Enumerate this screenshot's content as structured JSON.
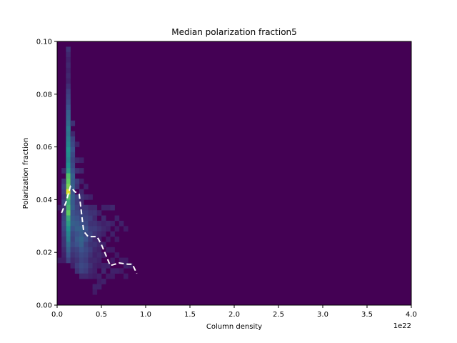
{
  "chart_data": {
    "type": "heatmap",
    "title": "Median polarization fraction5",
    "xlabel": "Column density",
    "ylabel": "Polarization fraction",
    "x_offset_label": "1e22",
    "xlim": [
      0.0,
      4.0
    ],
    "ylim": [
      0.0,
      0.1
    ],
    "x_ticks": [
      0.0,
      0.5,
      1.0,
      1.5,
      2.0,
      2.5,
      3.0,
      3.5,
      4.0
    ],
    "x_tick_labels": [
      "0.0",
      "0.5",
      "1.0",
      "1.5",
      "2.0",
      "2.5",
      "3.0",
      "3.5",
      "4.0"
    ],
    "y_ticks": [
      0.0,
      0.02,
      0.04,
      0.06,
      0.08,
      0.1
    ],
    "y_tick_labels": [
      "0.00",
      "0.02",
      "0.04",
      "0.06",
      "0.08",
      "0.10"
    ],
    "grid": false,
    "colormap": "viridis",
    "background_color": "#440154",
    "histogram": {
      "x_bin_width": 0.05,
      "y_bin_width": 0.002,
      "cells": [
        [
          0.1,
          0.096,
          0.15
        ],
        [
          0.1,
          0.094,
          0.12
        ],
        [
          0.1,
          0.092,
          0.1
        ],
        [
          0.1,
          0.09,
          0.12
        ],
        [
          0.1,
          0.088,
          0.1
        ],
        [
          0.1,
          0.086,
          0.12
        ],
        [
          0.1,
          0.084,
          0.1
        ],
        [
          0.1,
          0.082,
          0.14
        ],
        [
          0.1,
          0.08,
          0.18
        ],
        [
          0.1,
          0.078,
          0.2
        ],
        [
          0.1,
          0.076,
          0.22
        ],
        [
          0.1,
          0.074,
          0.25
        ],
        [
          0.1,
          0.072,
          0.3
        ],
        [
          0.1,
          0.07,
          0.32
        ],
        [
          0.1,
          0.068,
          0.35
        ],
        [
          0.1,
          0.066,
          0.4
        ],
        [
          0.1,
          0.064,
          0.38
        ],
        [
          0.1,
          0.062,
          0.42
        ],
        [
          0.1,
          0.06,
          0.45
        ],
        [
          0.1,
          0.058,
          0.5
        ],
        [
          0.1,
          0.056,
          0.48
        ],
        [
          0.1,
          0.054,
          0.45
        ],
        [
          0.1,
          0.052,
          0.5
        ],
        [
          0.1,
          0.05,
          0.55
        ],
        [
          0.1,
          0.048,
          0.7
        ],
        [
          0.1,
          0.046,
          0.75
        ],
        [
          0.1,
          0.044,
          0.8
        ],
        [
          0.1,
          0.042,
          0.95
        ],
        [
          0.1,
          0.04,
          0.7
        ],
        [
          0.1,
          0.038,
          0.6
        ],
        [
          0.1,
          0.036,
          0.65
        ],
        [
          0.1,
          0.034,
          0.75
        ],
        [
          0.1,
          0.032,
          0.6
        ],
        [
          0.1,
          0.03,
          0.55
        ],
        [
          0.1,
          0.028,
          0.5
        ],
        [
          0.1,
          0.026,
          0.45
        ],
        [
          0.1,
          0.024,
          0.42
        ],
        [
          0.1,
          0.022,
          0.35
        ],
        [
          0.1,
          0.02,
          0.3
        ],
        [
          0.1,
          0.018,
          0.25
        ],
        [
          0.1,
          0.016,
          0.2
        ],
        [
          0.05,
          0.05,
          0.12
        ],
        [
          0.05,
          0.046,
          0.15
        ],
        [
          0.05,
          0.044,
          0.2
        ],
        [
          0.05,
          0.042,
          0.18
        ],
        [
          0.05,
          0.04,
          0.15
        ],
        [
          0.05,
          0.038,
          0.2
        ],
        [
          0.05,
          0.036,
          0.15
        ],
        [
          0.05,
          0.034,
          0.18
        ],
        [
          0.05,
          0.032,
          0.2
        ],
        [
          0.05,
          0.03,
          0.22
        ],
        [
          0.05,
          0.028,
          0.2
        ],
        [
          0.05,
          0.026,
          0.18
        ],
        [
          0.05,
          0.024,
          0.15
        ],
        [
          0.05,
          0.022,
          0.15
        ],
        [
          0.05,
          0.02,
          0.12
        ],
        [
          0.05,
          0.018,
          0.1
        ],
        [
          0.05,
          0.016,
          0.08
        ],
        [
          0.0,
          0.016,
          0.08
        ],
        [
          0.0,
          0.036,
          0.08
        ],
        [
          0.15,
          0.068,
          0.15
        ],
        [
          0.15,
          0.064,
          0.12
        ],
        [
          0.15,
          0.062,
          0.2
        ],
        [
          0.15,
          0.06,
          0.22
        ],
        [
          0.15,
          0.058,
          0.25
        ],
        [
          0.15,
          0.056,
          0.22
        ],
        [
          0.15,
          0.054,
          0.2
        ],
        [
          0.15,
          0.052,
          0.22
        ],
        [
          0.15,
          0.05,
          0.25
        ],
        [
          0.15,
          0.048,
          0.3
        ],
        [
          0.15,
          0.046,
          0.28
        ],
        [
          0.15,
          0.044,
          0.3
        ],
        [
          0.15,
          0.042,
          0.25
        ],
        [
          0.15,
          0.04,
          0.3
        ],
        [
          0.15,
          0.038,
          0.28
        ],
        [
          0.15,
          0.036,
          0.3
        ],
        [
          0.15,
          0.034,
          0.25
        ],
        [
          0.15,
          0.032,
          0.28
        ],
        [
          0.15,
          0.03,
          0.3
        ],
        [
          0.15,
          0.028,
          0.25
        ],
        [
          0.15,
          0.026,
          0.22
        ],
        [
          0.15,
          0.024,
          0.2
        ],
        [
          0.15,
          0.022,
          0.22
        ],
        [
          0.15,
          0.02,
          0.18
        ],
        [
          0.15,
          0.018,
          0.15
        ],
        [
          0.15,
          0.016,
          0.12
        ],
        [
          0.15,
          0.014,
          0.1
        ],
        [
          0.2,
          0.06,
          0.1
        ],
        [
          0.2,
          0.054,
          0.12
        ],
        [
          0.2,
          0.05,
          0.15
        ],
        [
          0.2,
          0.046,
          0.18
        ],
        [
          0.2,
          0.044,
          0.15
        ],
        [
          0.2,
          0.04,
          0.2
        ],
        [
          0.2,
          0.038,
          0.18
        ],
        [
          0.2,
          0.036,
          0.2
        ],
        [
          0.2,
          0.034,
          0.22
        ],
        [
          0.2,
          0.032,
          0.25
        ],
        [
          0.2,
          0.03,
          0.28
        ],
        [
          0.2,
          0.028,
          0.3
        ],
        [
          0.2,
          0.026,
          0.25
        ],
        [
          0.2,
          0.024,
          0.28
        ],
        [
          0.2,
          0.022,
          0.25
        ],
        [
          0.2,
          0.02,
          0.2
        ],
        [
          0.2,
          0.018,
          0.18
        ],
        [
          0.2,
          0.016,
          0.15
        ],
        [
          0.2,
          0.014,
          0.18
        ],
        [
          0.2,
          0.012,
          0.15
        ],
        [
          0.25,
          0.054,
          0.1
        ],
        [
          0.25,
          0.05,
          0.12
        ],
        [
          0.25,
          0.046,
          0.1
        ],
        [
          0.25,
          0.042,
          0.12
        ],
        [
          0.25,
          0.04,
          0.15
        ],
        [
          0.25,
          0.038,
          0.12
        ],
        [
          0.25,
          0.036,
          0.15
        ],
        [
          0.25,
          0.034,
          0.2
        ],
        [
          0.25,
          0.032,
          0.22
        ],
        [
          0.25,
          0.03,
          0.25
        ],
        [
          0.25,
          0.028,
          0.3
        ],
        [
          0.25,
          0.026,
          0.28
        ],
        [
          0.25,
          0.024,
          0.32
        ],
        [
          0.25,
          0.022,
          0.3
        ],
        [
          0.25,
          0.02,
          0.25
        ],
        [
          0.25,
          0.018,
          0.22
        ],
        [
          0.25,
          0.016,
          0.2
        ],
        [
          0.25,
          0.014,
          0.22
        ],
        [
          0.25,
          0.012,
          0.2
        ],
        [
          0.25,
          0.01,
          0.12
        ],
        [
          0.3,
          0.044,
          0.1
        ],
        [
          0.3,
          0.04,
          0.12
        ],
        [
          0.3,
          0.036,
          0.15
        ],
        [
          0.3,
          0.034,
          0.18
        ],
        [
          0.3,
          0.032,
          0.2
        ],
        [
          0.3,
          0.03,
          0.22
        ],
        [
          0.3,
          0.028,
          0.25
        ],
        [
          0.3,
          0.026,
          0.22
        ],
        [
          0.3,
          0.024,
          0.25
        ],
        [
          0.3,
          0.022,
          0.2
        ],
        [
          0.3,
          0.02,
          0.22
        ],
        [
          0.3,
          0.018,
          0.2
        ],
        [
          0.3,
          0.016,
          0.18
        ],
        [
          0.3,
          0.014,
          0.2
        ],
        [
          0.3,
          0.012,
          0.18
        ],
        [
          0.3,
          0.01,
          0.12
        ],
        [
          0.35,
          0.04,
          0.1
        ],
        [
          0.35,
          0.036,
          0.12
        ],
        [
          0.35,
          0.034,
          0.15
        ],
        [
          0.35,
          0.032,
          0.18
        ],
        [
          0.35,
          0.03,
          0.15
        ],
        [
          0.35,
          0.028,
          0.18
        ],
        [
          0.35,
          0.026,
          0.2
        ],
        [
          0.35,
          0.024,
          0.18
        ],
        [
          0.35,
          0.022,
          0.15
        ],
        [
          0.35,
          0.02,
          0.18
        ],
        [
          0.35,
          0.018,
          0.15
        ],
        [
          0.35,
          0.016,
          0.12
        ],
        [
          0.35,
          0.014,
          0.15
        ],
        [
          0.35,
          0.012,
          0.12
        ],
        [
          0.35,
          0.01,
          0.1
        ],
        [
          0.4,
          0.036,
          0.12
        ],
        [
          0.4,
          0.034,
          0.15
        ],
        [
          0.4,
          0.032,
          0.12
        ],
        [
          0.4,
          0.03,
          0.15
        ],
        [
          0.4,
          0.028,
          0.18
        ],
        [
          0.4,
          0.026,
          0.15
        ],
        [
          0.4,
          0.024,
          0.12
        ],
        [
          0.4,
          0.022,
          0.15
        ],
        [
          0.4,
          0.02,
          0.12
        ],
        [
          0.4,
          0.018,
          0.1
        ],
        [
          0.4,
          0.016,
          0.12
        ],
        [
          0.4,
          0.014,
          0.1
        ],
        [
          0.4,
          0.012,
          0.1
        ],
        [
          0.4,
          0.01,
          0.08
        ],
        [
          0.4,
          0.006,
          0.1
        ],
        [
          0.4,
          0.004,
          0.08
        ],
        [
          0.45,
          0.034,
          0.1
        ],
        [
          0.45,
          0.03,
          0.12
        ],
        [
          0.45,
          0.028,
          0.15
        ],
        [
          0.45,
          0.026,
          0.12
        ],
        [
          0.45,
          0.024,
          0.1
        ],
        [
          0.45,
          0.022,
          0.12
        ],
        [
          0.45,
          0.02,
          0.1
        ],
        [
          0.45,
          0.018,
          0.12
        ],
        [
          0.45,
          0.016,
          0.1
        ],
        [
          0.45,
          0.014,
          0.08
        ],
        [
          0.45,
          0.01,
          0.1
        ],
        [
          0.45,
          0.008,
          0.08
        ],
        [
          0.45,
          0.006,
          0.1
        ],
        [
          0.5,
          0.036,
          0.1
        ],
        [
          0.5,
          0.032,
          0.12
        ],
        [
          0.5,
          0.03,
          0.1
        ],
        [
          0.5,
          0.028,
          0.12
        ],
        [
          0.5,
          0.026,
          0.1
        ],
        [
          0.5,
          0.022,
          0.1
        ],
        [
          0.5,
          0.018,
          0.08
        ],
        [
          0.5,
          0.014,
          0.1
        ],
        [
          0.5,
          0.012,
          0.12
        ],
        [
          0.5,
          0.008,
          0.1
        ],
        [
          0.55,
          0.036,
          0.1
        ],
        [
          0.55,
          0.03,
          0.12
        ],
        [
          0.55,
          0.028,
          0.1
        ],
        [
          0.55,
          0.024,
          0.08
        ],
        [
          0.55,
          0.02,
          0.08
        ],
        [
          0.55,
          0.014,
          0.1
        ],
        [
          0.55,
          0.01,
          0.08
        ],
        [
          0.6,
          0.036,
          0.12
        ],
        [
          0.6,
          0.03,
          0.1
        ],
        [
          0.6,
          0.026,
          0.1
        ],
        [
          0.6,
          0.02,
          0.08
        ],
        [
          0.6,
          0.016,
          0.08
        ],
        [
          0.6,
          0.012,
          0.1
        ],
        [
          0.6,
          0.01,
          0.08
        ],
        [
          0.65,
          0.032,
          0.1
        ],
        [
          0.65,
          0.028,
          0.08
        ],
        [
          0.65,
          0.024,
          0.08
        ],
        [
          0.65,
          0.018,
          0.08
        ],
        [
          0.65,
          0.012,
          0.1
        ],
        [
          0.7,
          0.03,
          0.1
        ],
        [
          0.7,
          0.016,
          0.08
        ],
        [
          0.7,
          0.012,
          0.08
        ],
        [
          0.75,
          0.028,
          0.08
        ],
        [
          0.75,
          0.016,
          0.08
        ],
        [
          0.75,
          0.014,
          0.1
        ],
        [
          0.75,
          0.01,
          0.08
        ],
        [
          0.8,
          0.014,
          0.08
        ]
      ]
    },
    "series": [
      {
        "style": "dashed",
        "color": "#ffffff",
        "x": [
          0.05,
          0.1,
          0.15,
          0.2,
          0.25,
          0.3,
          0.35,
          0.4,
          0.45,
          0.5,
          0.55,
          0.6,
          0.7,
          0.8,
          0.85,
          0.9
        ],
        "y": [
          0.035,
          0.039,
          0.045,
          0.043,
          0.042,
          0.028,
          0.026,
          0.026,
          0.026,
          0.023,
          0.019,
          0.015,
          0.016,
          0.0155,
          0.0155,
          0.012
        ]
      }
    ]
  }
}
